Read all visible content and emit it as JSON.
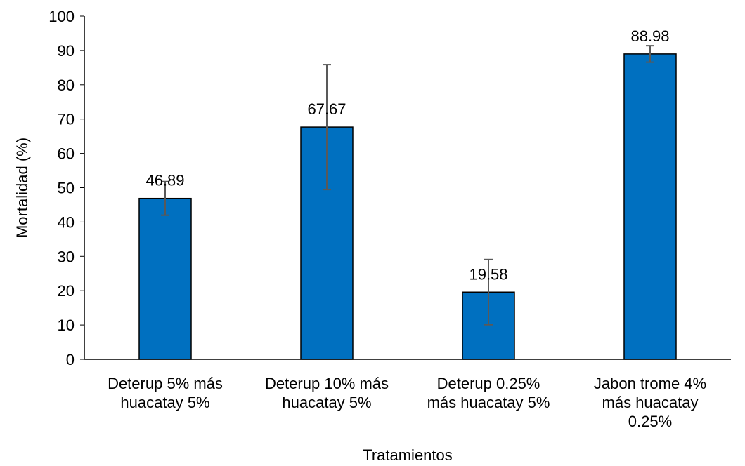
{
  "chart_data": {
    "type": "bar",
    "title": "",
    "xlabel": "Tratamientos",
    "ylabel": "Mortalidad (%)",
    "ylim": [
      0,
      100
    ],
    "yticks": [
      0,
      10,
      20,
      30,
      40,
      50,
      60,
      70,
      80,
      90,
      100
    ],
    "grid": false,
    "categories": [
      [
        "Deterup 5% más",
        "huacatay 5%"
      ],
      [
        "Deterup 10% más",
        "huacatay 5%"
      ],
      [
        "Deterup 0.25%",
        "más huacatay 5%"
      ],
      [
        "Jabon trome 4%",
        "más huacatay",
        "0.25%"
      ]
    ],
    "values": [
      46.89,
      67.67,
      19.58,
      88.98
    ],
    "value_labels": [
      "46.89",
      "67.67",
      "19.58",
      "88.98"
    ],
    "error": [
      4.9,
      18.2,
      9.5,
      2.4
    ],
    "colors": {
      "bar": "#0070c0",
      "bar_stroke": "#000000",
      "error_bar": "#595959",
      "axis": "#000000"
    }
  }
}
